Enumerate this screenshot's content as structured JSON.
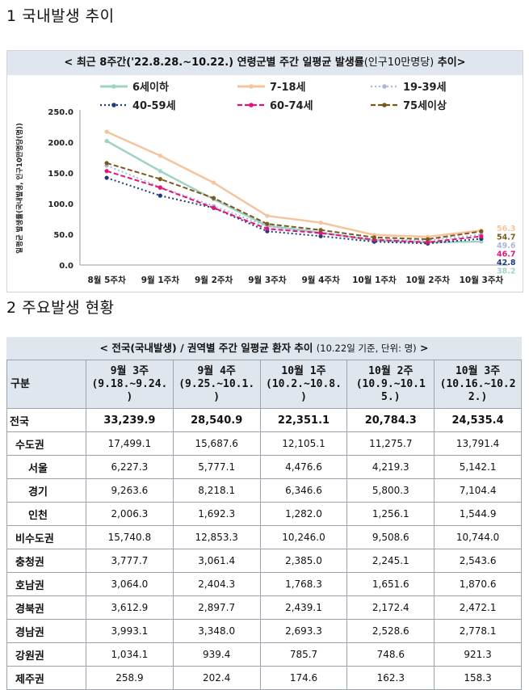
{
  "section1_title": "1  국내발생 추이",
  "section2_title": "2  주요발생 현황",
  "chart": {
    "header_main": "< 최근 8주간('22.8.28.~10.22.) 연령군별 주간 일평균 발생률",
    "header_sub": "(인구10만명당)",
    "header_tail": " 추이>",
    "ylabel": "일평균 발생률(국내발생, 인구10만명당(명))"
  },
  "chart_data": {
    "type": "line",
    "categories": [
      "8월 5주차",
      "9월 1주차",
      "9월 2주차",
      "9월 3주차",
      "9월 4주차",
      "10월 1주차",
      "10월 2주차",
      "10월 3주차"
    ],
    "ylim": [
      0,
      250
    ],
    "yticks": [
      "0.0",
      "50.0",
      "100.0",
      "150.0",
      "200.0",
      "250.0"
    ],
    "series": [
      {
        "name": "6세이하",
        "color": "#9fd4c5",
        "dash": "solid",
        "values": [
          202,
          153,
          107,
          64,
          53,
          40,
          37,
          38.2
        ],
        "end_label": "38.2"
      },
      {
        "name": "7-18세",
        "color": "#f6c49c",
        "dash": "solid",
        "values": [
          217,
          178,
          134,
          80,
          69,
          49,
          46,
          56.3
        ],
        "end_label": "56.3"
      },
      {
        "name": "19-39세",
        "color": "#aab8d8",
        "dash": "dot",
        "values": [
          162,
          127,
          96,
          63,
          53,
          42,
          40,
          49.6
        ],
        "end_label": "49.6"
      },
      {
        "name": "40-59세",
        "color": "#1f3a7a",
        "dash": "dot",
        "values": [
          142,
          113,
          93,
          55,
          47,
          38,
          35,
          42.8
        ],
        "end_label": "42.8"
      },
      {
        "name": "60-74세",
        "color": "#e0157a",
        "dash": "dash",
        "values": [
          153,
          126,
          93,
          59,
          52,
          41,
          37,
          46.7
        ],
        "end_label": "46.7"
      },
      {
        "name": "75세이상",
        "color": "#7a5a1a",
        "dash": "dash",
        "values": [
          166,
          140,
          109,
          67,
          57,
          45,
          42,
          54.7
        ],
        "end_label": "54.7"
      }
    ]
  },
  "table": {
    "header_main": "< 전국(국내발생) / 권역별 주간 일평균 환자 추이 ",
    "header_sub": "(10.22일 기준, 단위: 명)",
    "header_tail": " >",
    "col0": "구분",
    "columns": [
      [
        "9월 3주",
        "(9.18.~9.24.",
        ")"
      ],
      [
        "9월 4주",
        "(9.25.~10.1.",
        ")"
      ],
      [
        "10월 1주",
        "(10.2.~10.8.",
        ")"
      ],
      [
        "10월 2주",
        "(10.9.~10.1",
        "5.)"
      ],
      [
        "10월 3주",
        "(10.16.~10.2",
        "2.)"
      ]
    ],
    "rows": [
      {
        "label": "전국",
        "type": "total",
        "values": [
          "33,239.9",
          "28,540.9",
          "22,351.1",
          "20,784.3",
          "24,535.4"
        ]
      },
      {
        "label": "수도권",
        "type": "region",
        "values": [
          "17,499.1",
          "15,687.6",
          "12,105.1",
          "11,275.7",
          "13,791.4"
        ]
      },
      {
        "label": "서울",
        "type": "sub",
        "values": [
          "6,227.3",
          "5,777.1",
          "4,476.6",
          "4,219.3",
          "5,142.1"
        ]
      },
      {
        "label": "경기",
        "type": "sub",
        "values": [
          "9,263.6",
          "8,218.1",
          "6,346.6",
          "5,800.3",
          "7,104.4"
        ]
      },
      {
        "label": "인천",
        "type": "sub",
        "values": [
          "2,006.3",
          "1,692.3",
          "1,282.0",
          "1,256.1",
          "1,544.9"
        ]
      },
      {
        "label": "비수도권",
        "type": "region",
        "values": [
          "15,740.8",
          "12,853.3",
          "10,246.0",
          "9,508.6",
          "10,744.0"
        ]
      },
      {
        "label": "충청권",
        "type": "region",
        "values": [
          "3,777.7",
          "3,061.4",
          "2,385.0",
          "2,245.1",
          "2,543.6"
        ]
      },
      {
        "label": "호남권",
        "type": "region",
        "values": [
          "3,064.0",
          "2,404.3",
          "1,768.3",
          "1,651.6",
          "1,870.6"
        ]
      },
      {
        "label": "경북권",
        "type": "region",
        "values": [
          "3,612.9",
          "2,897.7",
          "2,439.1",
          "2,172.4",
          "2,472.1"
        ]
      },
      {
        "label": "경남권",
        "type": "region",
        "values": [
          "3,993.1",
          "3,348.0",
          "2,693.3",
          "2,528.6",
          "2,778.1"
        ]
      },
      {
        "label": "강원권",
        "type": "region",
        "values": [
          "1,034.1",
          "939.4",
          "785.7",
          "748.6",
          "921.3"
        ]
      },
      {
        "label": "제주권",
        "type": "region",
        "values": [
          "258.9",
          "202.4",
          "174.6",
          "162.3",
          "158.3"
        ]
      }
    ]
  }
}
